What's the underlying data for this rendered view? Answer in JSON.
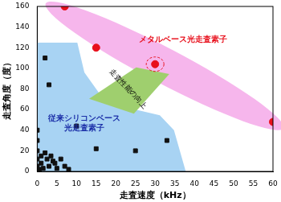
{
  "chart_data": {
    "type": "scatter",
    "x_label": "走査速度（kHz）",
    "y_label": "走査角度（度）",
    "annotations": [
      "走査性能の向上"
    ],
    "xlim": [
      0,
      60
    ],
    "xticks": [
      0,
      5,
      10,
      15,
      20,
      25,
      30,
      35,
      40,
      45,
      50,
      55,
      60
    ],
    "ylim": [
      0,
      160
    ],
    "yticks": [
      0,
      20,
      40,
      60,
      80,
      100,
      120,
      140,
      160
    ],
    "grid": false,
    "series": [
      {
        "name": "メタルベース光走査素子",
        "color": "#e8101c",
        "marker": "circle",
        "x": [
          7,
          15,
          30,
          60
        ],
        "values": [
          160,
          120,
          104,
          48
        ]
      },
      {
        "name": "従来シリコンベース光走査素子",
        "color": "#111111",
        "marker": "square",
        "x": [
          0,
          0,
          0,
          0,
          0,
          0.5,
          1,
          1,
          1.5,
          2,
          2,
          2.5,
          3,
          3,
          3.5,
          4,
          4.5,
          5,
          6,
          7,
          8,
          10,
          15,
          25,
          33
        ],
        "values": [
          40,
          30,
          20,
          12,
          5,
          2,
          8,
          15,
          3,
          110,
          18,
          12,
          84,
          5,
          15,
          10,
          8,
          3,
          12,
          5,
          2,
          44,
          22,
          20,
          30
        ]
      }
    ]
  }
}
